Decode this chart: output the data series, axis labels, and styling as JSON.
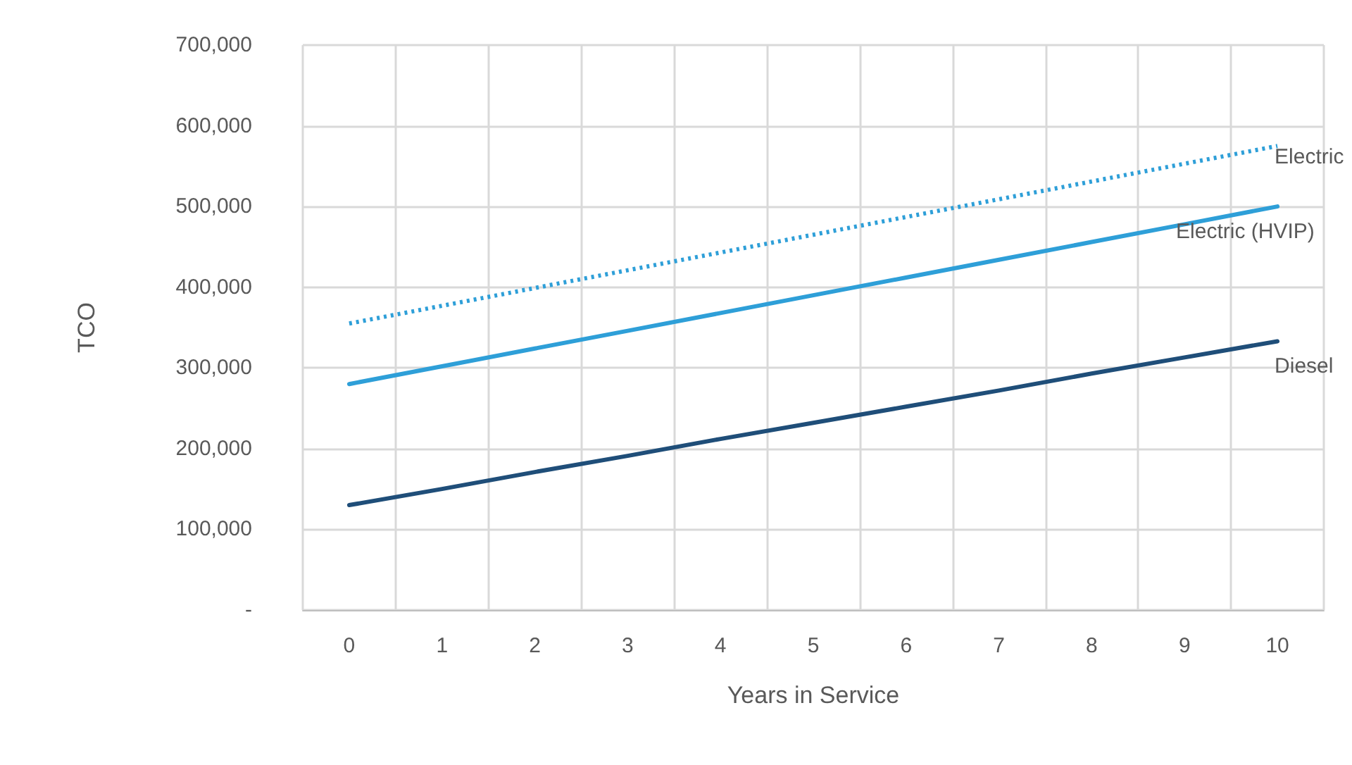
{
  "chart_data": {
    "type": "line",
    "xlabel": "Years in Service",
    "ylabel": "TCO",
    "categories": [
      "0",
      "1",
      "2",
      "3",
      "4",
      "5",
      "6",
      "7",
      "8",
      "9",
      "10"
    ],
    "series": [
      {
        "name": "Electric",
        "color": "#2e9fd8",
        "line_style": "dotted",
        "values": [
          355000,
          377000,
          399000,
          421000,
          443000,
          465000,
          487000,
          509000,
          531000,
          553000,
          575000
        ]
      },
      {
        "name": "Electric (HVIP)",
        "color": "#2e9fd8",
        "line_style": "solid",
        "values": [
          280000,
          302000,
          324000,
          346000,
          368000,
          390000,
          412000,
          434000,
          456000,
          478000,
          500000
        ]
      },
      {
        "name": "Diesel",
        "color": "#1f4e79",
        "line_style": "solid",
        "values": [
          130000,
          150000,
          171000,
          191000,
          212000,
          232000,
          252000,
          272000,
          293000,
          313000,
          333000
        ]
      }
    ],
    "ylim": [
      0,
      700000
    ],
    "yticks": [
      {
        "value": 0,
        "label": "-"
      },
      {
        "value": 100000,
        "label": "100,000"
      },
      {
        "value": 200000,
        "label": "200,000"
      },
      {
        "value": 300000,
        "label": "300,000"
      },
      {
        "value": 400000,
        "label": "400,000"
      },
      {
        "value": 500000,
        "label": "500,000"
      },
      {
        "value": 600000,
        "label": "600,000"
      },
      {
        "value": 700000,
        "label": "700,000"
      }
    ],
    "grid": true,
    "legend": false,
    "marker": "none"
  }
}
